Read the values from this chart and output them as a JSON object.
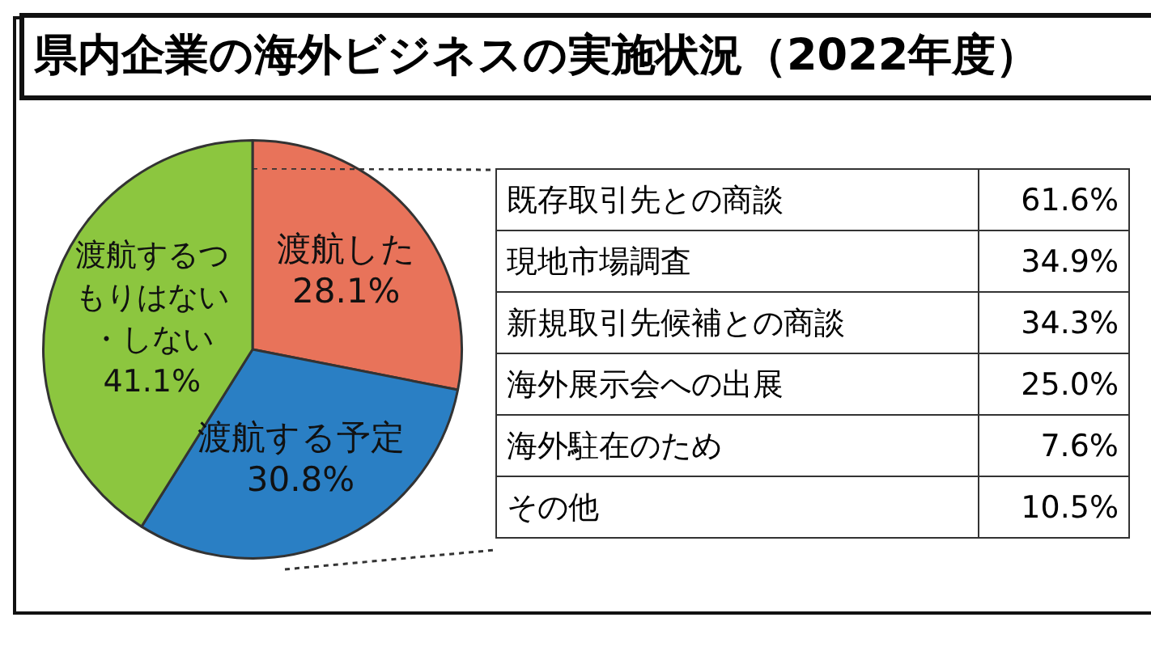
{
  "chart_data": [
    {
      "type": "pie",
      "title": "県内企業の海外ビジネスの実施状況（2022年度）",
      "categories": [
        "渡航した",
        "渡航する予定",
        "渡航するつもりはない・しない"
      ],
      "values": [
        28.1,
        30.8,
        41.1
      ],
      "value_labels": [
        "28.1%",
        "30.8%",
        "41.1%"
      ],
      "colors": [
        "#e8735a",
        "#2a7fc4",
        "#8cc63f"
      ]
    },
    {
      "type": "other",
      "categories": [
        "既存取引先との商談",
        "現地市場調査",
        "新規取引先候補との商談",
        "海外展示会への出展",
        "海外駐在のため",
        "その他"
      ],
      "values": [
        61.6,
        34.9,
        34.3,
        25.0,
        7.6,
        10.5
      ],
      "value_labels": [
        "61.6%",
        "34.9%",
        "34.3%",
        "25.0%",
        "7.6%",
        "10.5%"
      ]
    }
  ]
}
